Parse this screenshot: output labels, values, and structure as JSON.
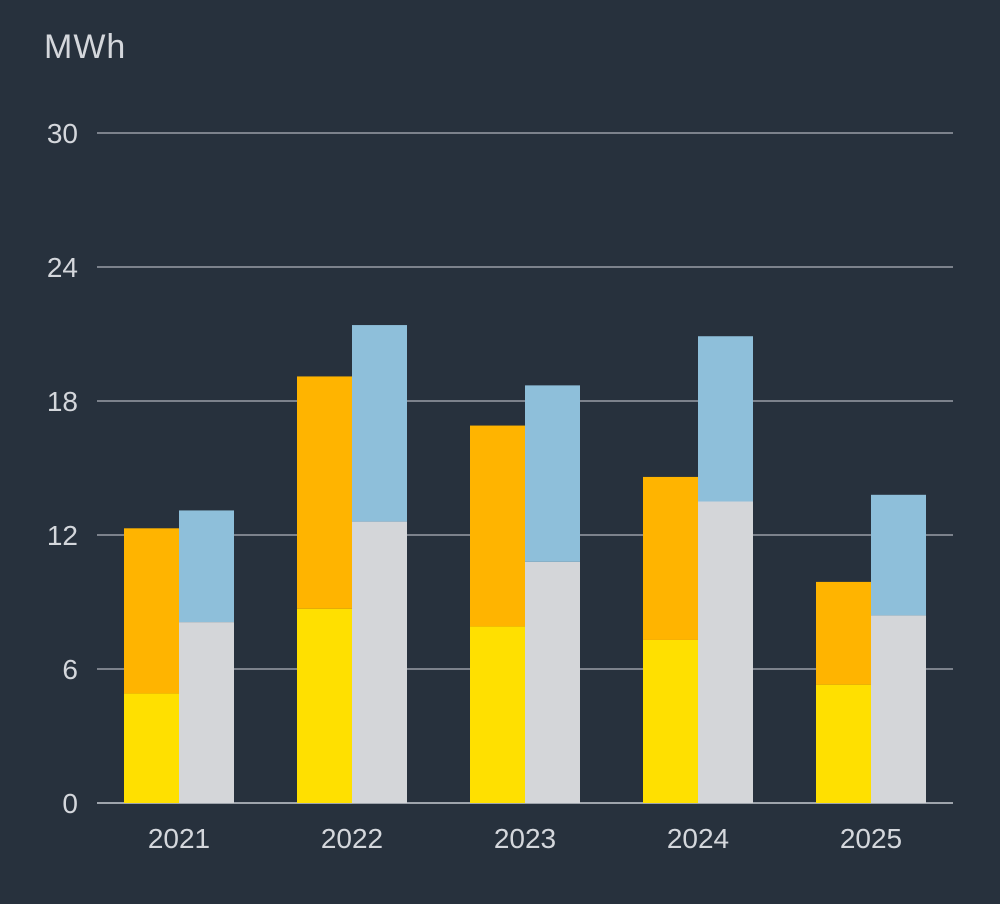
{
  "chart_data": {
    "type": "bar",
    "stacked": true,
    "grouped": true,
    "unit": "MWh",
    "categories": [
      "2021",
      "2022",
      "2023",
      "2024",
      "2025"
    ],
    "ylim": [
      0,
      30
    ],
    "yticks": [
      0,
      6,
      12,
      18,
      24,
      30
    ],
    "grid": true,
    "groups": [
      {
        "series": [
          {
            "color": "#ffe000",
            "values": [
              4.9,
              8.7,
              7.9,
              7.3,
              5.3
            ]
          },
          {
            "color": "#ffb400",
            "values": [
              7.4,
              10.4,
              9.0,
              7.3,
              4.6
            ]
          }
        ]
      },
      {
        "series": [
          {
            "color": "#d4d6d9",
            "values": [
              8.1,
              12.6,
              10.8,
              13.5,
              8.4
            ]
          },
          {
            "color": "#8ebfda",
            "values": [
              5.0,
              8.8,
              7.9,
              7.4,
              5.4
            ]
          }
        ]
      }
    ]
  }
}
